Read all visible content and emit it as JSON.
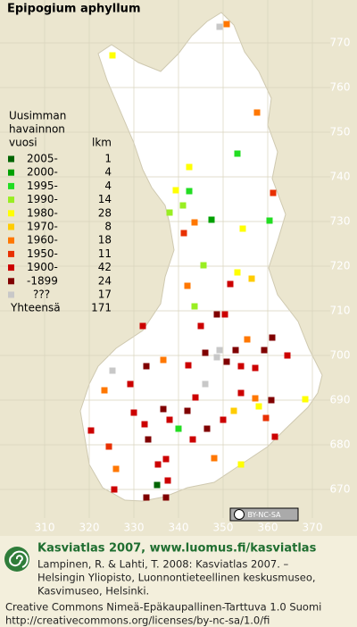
{
  "title": "Epipogium aphyllum",
  "legend": {
    "heading": [
      "Uusimman",
      "havainnon",
      "vuosi"
    ],
    "count_heading": "lkm",
    "entries": [
      {
        "label": "2005-",
        "count": 1,
        "color": "#006400"
      },
      {
        "label": "2000-",
        "count": 4,
        "color": "#00a000"
      },
      {
        "label": "1995-",
        "count": 4,
        "color": "#22dd22"
      },
      {
        "label": "1990-",
        "count": 14,
        "color": "#99ee22"
      },
      {
        "label": "1980-",
        "count": 28,
        "color": "#ffff00"
      },
      {
        "label": "1970-",
        "count": 8,
        "color": "#ffcc00"
      },
      {
        "label": "1960-",
        "count": 18,
        "color": "#ff7700"
      },
      {
        "label": "1950-",
        "count": 11,
        "color": "#e83000"
      },
      {
        "label": "1900-",
        "count": 42,
        "color": "#cc0000"
      },
      {
        "label": "-1899",
        "count": 24,
        "color": "#800000"
      },
      {
        "label": "???",
        "count": 17,
        "color": "#c8c8c8"
      }
    ],
    "total_label": "Yhteensä",
    "total": 171
  },
  "x_labels": [
    310,
    320,
    330,
    340,
    350,
    360,
    370
  ],
  "y_labels": [
    770,
    760,
    750,
    740,
    730,
    720,
    710,
    700,
    690,
    680,
    670
  ],
  "badge": "BY-NC-SA",
  "footer": {
    "heading": "Kasviatlas 2007, www.luomus.fi/kasviatlas",
    "citation": [
      "Lampinen, R. & Lahti, T. 2008: Kasviatlas 2007. –",
      "Helsingin Yliopisto, Luonnontieteellinen keskusmuseo,",
      "Kasvimuseo, Helsinki."
    ],
    "license": [
      "Creative Commons Nimeä-Epäkaupallinen-Tarttuva 1.0 Suomi",
      "http://creativecommons.org/licenses/by-nc-sa/1.0/fi"
    ]
  }
}
